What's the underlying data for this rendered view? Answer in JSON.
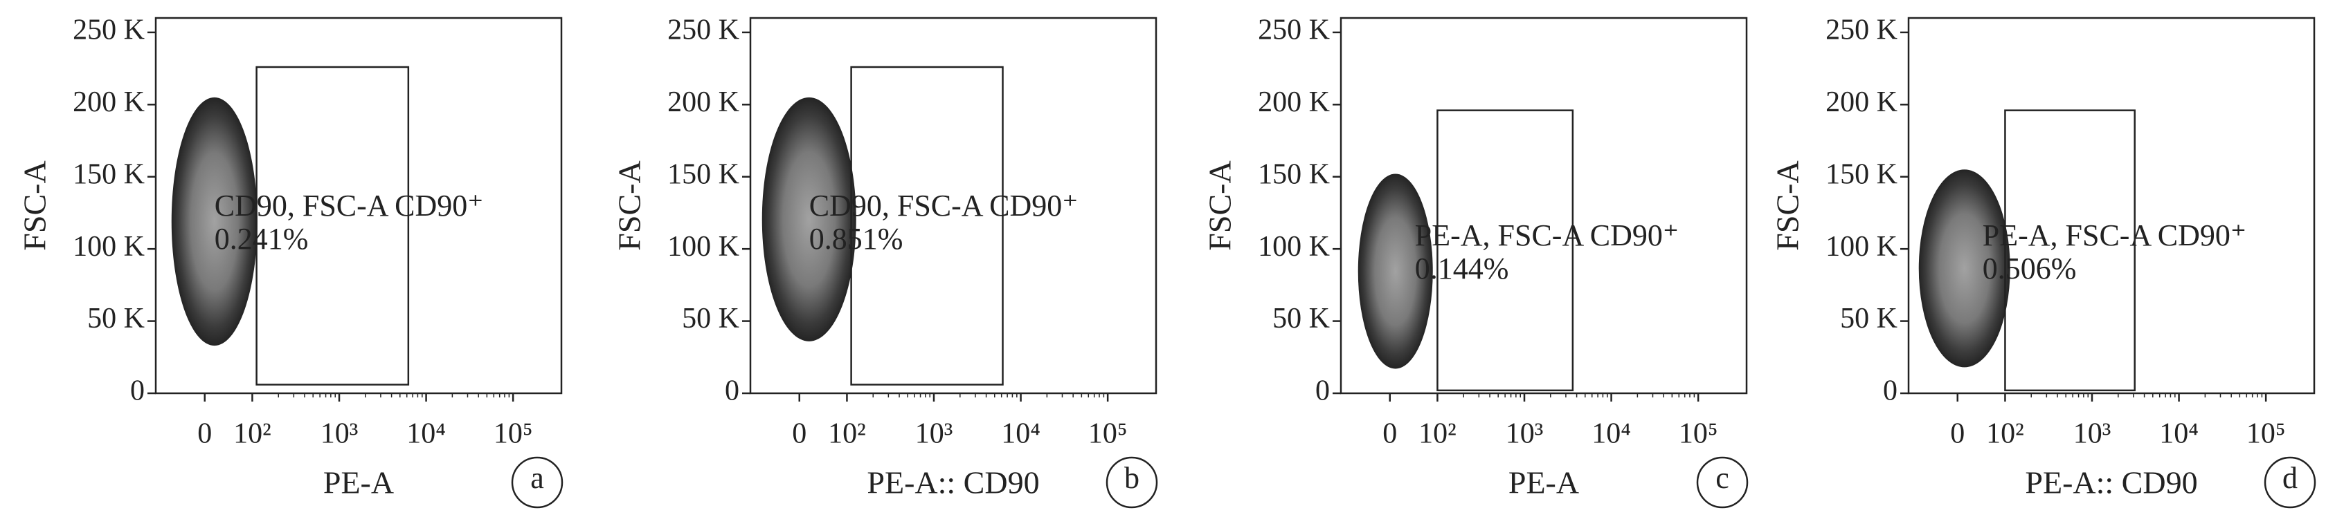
{
  "chart_data": [
    {
      "type": "scatter",
      "panel_label": "a",
      "xlabel": "PE-A",
      "ylabel": "FSC-A",
      "xscale": "biexponential",
      "xlim": [
        -103,
        360000
      ],
      "ylim": [
        0,
        260000
      ],
      "xticks": [
        0,
        {
          "value": 100,
          "label": "10²"
        },
        {
          "value": 1000,
          "label": "10³"
        },
        {
          "value": 10000,
          "label": "10⁴"
        },
        {
          "value": 100000,
          "label": "10⁵"
        }
      ],
      "yticks": [
        0,
        {
          "value": 50000,
          "label": "50 K"
        },
        {
          "value": 100000,
          "label": "100 K"
        },
        {
          "value": 150000,
          "label": "150 K"
        },
        {
          "value": 200000,
          "label": "200 K"
        },
        {
          "value": 250000,
          "label": "250 K"
        }
      ],
      "gate": {
        "name": "CD90, FSC-A CD90⁺",
        "x": [
          112,
          6240
        ],
        "y": [
          6000,
          226000
        ],
        "values": [
          0.241
        ],
        "value_labels": [
          "0.241%"
        ]
      }
    },
    {
      "type": "scatter",
      "panel_label": "b",
      "xlabel": "PE-A:: CD90",
      "ylabel": "FSC-A",
      "xscale": "biexponential",
      "xlim": [
        -103,
        360000
      ],
      "ylim": [
        0,
        260000
      ],
      "xticks": [
        0,
        {
          "value": 100,
          "label": "10²"
        },
        {
          "value": 1000,
          "label": "10³"
        },
        {
          "value": 10000,
          "label": "10⁴"
        },
        {
          "value": 100000,
          "label": "10⁵"
        }
      ],
      "yticks": [
        0,
        {
          "value": 50000,
          "label": "50 K"
        },
        {
          "value": 100000,
          "label": "100 K"
        },
        {
          "value": 150000,
          "label": "150 K"
        },
        {
          "value": 200000,
          "label": "200 K"
        },
        {
          "value": 250000,
          "label": "250 K"
        }
      ],
      "gate": {
        "name": "CD90, FSC-A CD90⁺",
        "x": [
          112,
          6200
        ],
        "y": [
          6000,
          226000
        ],
        "values": [
          0.851
        ],
        "value_labels": [
          "0.851%"
        ]
      }
    },
    {
      "type": "scatter",
      "panel_label": "c",
      "xlabel": "PE-A",
      "ylabel": "FSC-A",
      "xscale": "biexponential",
      "xlim": [
        -103,
        360000
      ],
      "ylim": [
        0,
        260000
      ],
      "xticks": [
        0,
        {
          "value": 100,
          "label": "10²"
        },
        {
          "value": 1000,
          "label": "10³"
        },
        {
          "value": 10000,
          "label": "10⁴"
        },
        {
          "value": 100000,
          "label": "10⁵"
        }
      ],
      "yticks": [
        0,
        {
          "value": 50000,
          "label": "50 K"
        },
        {
          "value": 100000,
          "label": "100 K"
        },
        {
          "value": 150000,
          "label": "150 K"
        },
        {
          "value": 200000,
          "label": "200 K"
        },
        {
          "value": 250000,
          "label": "250 K"
        }
      ],
      "gate": {
        "name": "PE-A, FSC-A CD90⁺",
        "x": [
          100,
          3600
        ],
        "y": [
          2000,
          196000
        ],
        "values": [
          0.144
        ],
        "value_labels": [
          "0.144%"
        ]
      }
    },
    {
      "type": "scatter",
      "panel_label": "d",
      "xlabel": "PE-A:: CD90",
      "ylabel": "FSC-A",
      "xscale": "biexponential",
      "xlim": [
        -103,
        360000
      ],
      "ylim": [
        0,
        260000
      ],
      "xticks": [
        0,
        {
          "value": 100,
          "label": "10²"
        },
        {
          "value": 1000,
          "label": "10³"
        },
        {
          "value": 10000,
          "label": "10⁴"
        },
        {
          "value": 100000,
          "label": "10⁵"
        }
      ],
      "yticks": [
        0,
        {
          "value": 50000,
          "label": "50 K"
        },
        {
          "value": 100000,
          "label": "100 K"
        },
        {
          "value": 150000,
          "label": "150 K"
        },
        {
          "value": 200000,
          "label": "200 K"
        },
        {
          "value": 250000,
          "label": "250 K"
        }
      ],
      "gate": {
        "name": "PE-A, FSC-A CD90⁺",
        "x": [
          100,
          3100
        ],
        "y": [
          2000,
          196000
        ],
        "values": [
          0.506
        ],
        "value_labels": [
          "0.506%"
        ]
      }
    }
  ]
}
